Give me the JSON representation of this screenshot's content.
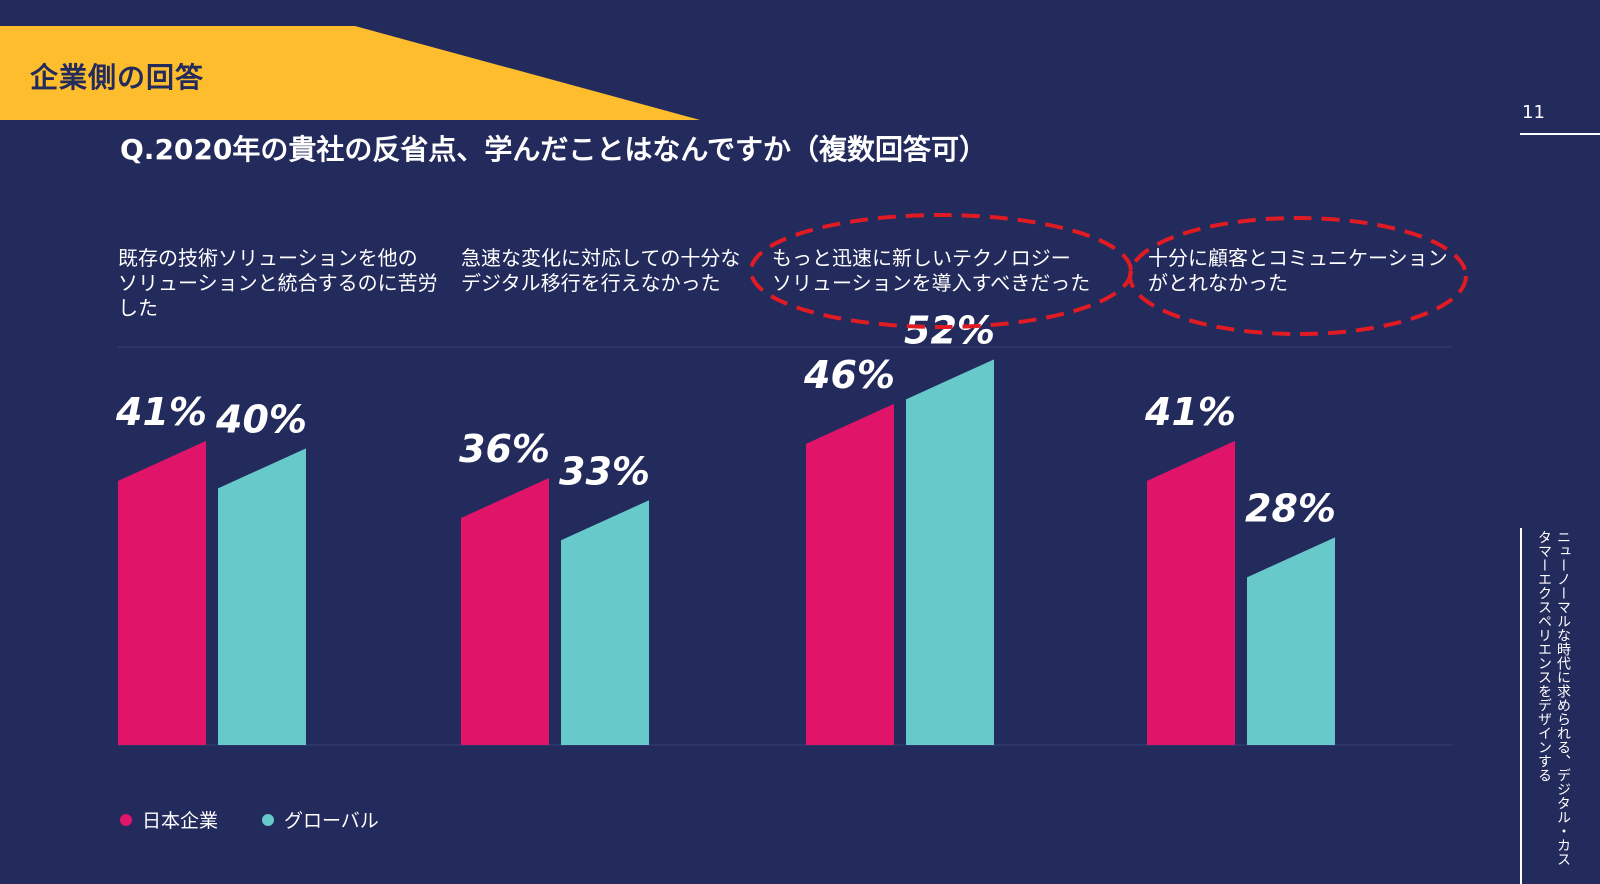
{
  "header": {
    "tag_label": "企業側の回答",
    "question": "Q.2020年の貴社の反省点、学んだことはなんですか（複数回答可）",
    "page_number": "11",
    "side_text": "ニューノーマルな時代に求められる、デジタル・カスタマーエクスペリエンスをデザインする"
  },
  "colors": {
    "background": "#232a5c",
    "banner": "#fdbd2c",
    "japan": "#e0156a",
    "global": "#67c9ca",
    "highlight": "#e01b24"
  },
  "chart_data": {
    "type": "bar",
    "categories": [
      "既存の技術ソリューションを他のソリューションと統合するのに苦労した",
      "急速な変化に対応しての十分なデジタル移行を行えなかった",
      "もっと迅速に新しいテクノロジーソリューションを導入すべきだった",
      "十分に顧客とコミュニケーションがとれなかった"
    ],
    "category_lines": [
      [
        "既存の技術ソリューションを他の",
        "ソリューションと統合するのに苦労",
        "した"
      ],
      [
        "急速な変化に対応しての十分な",
        "デジタル移行を行えなかった"
      ],
      [
        "もっと迅速に新しいテクノロジー",
        "ソリューションを導入すべきだった"
      ],
      [
        "十分に顧客とコミュニケーション",
        "がとれなかった"
      ]
    ],
    "series": [
      {
        "name": "日本企業",
        "values": [
          41,
          36,
          46,
          41
        ],
        "labels": [
          "41%",
          "36%",
          "46%",
          "41%"
        ]
      },
      {
        "name": "グローバル",
        "values": [
          40,
          33,
          52,
          28
        ],
        "labels": [
          "40%",
          "33%",
          "52%",
          "28%"
        ]
      }
    ],
    "highlighted_categories": [
      2,
      3
    ],
    "ylim": [
      0,
      60
    ],
    "legend_position": "bottom-left"
  }
}
